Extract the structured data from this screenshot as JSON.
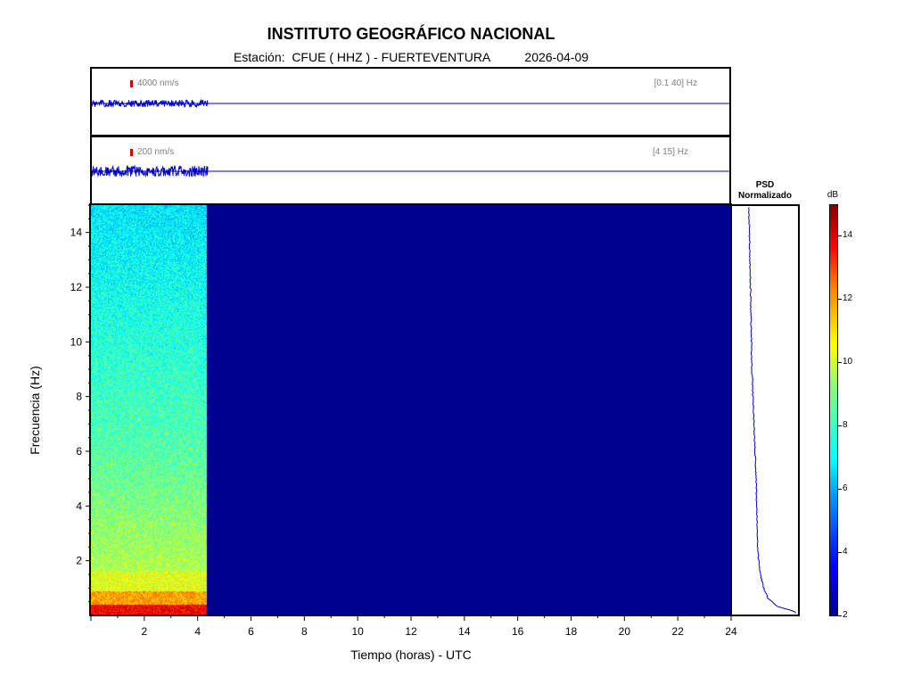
{
  "header": {
    "title": "INSTITUTO GEOGRÁFICO NACIONAL",
    "station_prefix": "Estación:",
    "station": "CFUE ( HHZ ) - FUERTEVENTURA",
    "date": "2026-04-09"
  },
  "trace_top": {
    "scale_label": "4000 nm/s",
    "band_label": "[0.1 40] Hz"
  },
  "trace_bottom": {
    "scale_label": "200 nm/s",
    "band_label": "[4 15] Hz"
  },
  "psd": {
    "title_line1": "PSD",
    "title_line2": "Normalizado"
  },
  "colorbar": {
    "unit": "dB",
    "min": 2,
    "max": 15,
    "ticks": [
      2,
      4,
      6,
      8,
      10,
      12,
      14
    ]
  },
  "colors": {
    "trace": "#0000cc",
    "no_data": "#00008f",
    "scale_mark": "#d40000"
  },
  "chart_data": {
    "type": "heatmap",
    "xlabel": "Tiempo (horas) - UTC",
    "ylabel": "Frecuencia  (Hz)",
    "xlim": [
      0,
      24
    ],
    "ylim": [
      0,
      15
    ],
    "x_ticks": [
      2,
      4,
      6,
      8,
      10,
      12,
      14,
      16,
      18,
      20,
      22,
      24
    ],
    "y_ticks": [
      2,
      4,
      6,
      8,
      10,
      12,
      14
    ],
    "data_end_hour": 4.35,
    "psd_profile": {
      "frequency_hz": [
        0.1,
        0.3,
        0.6,
        1,
        1.5,
        2,
        2.5,
        3,
        4,
        5,
        6,
        7,
        8,
        9,
        10,
        11,
        12,
        13,
        14,
        15
      ],
      "normalized": [
        0.95,
        0.6,
        0.42,
        0.33,
        0.27,
        0.24,
        0.22,
        0.21,
        0.2,
        0.19,
        0.17,
        0.15,
        0.13,
        0.11,
        0.1,
        0.09,
        0.08,
        0.07,
        0.06,
        0.05
      ]
    }
  }
}
